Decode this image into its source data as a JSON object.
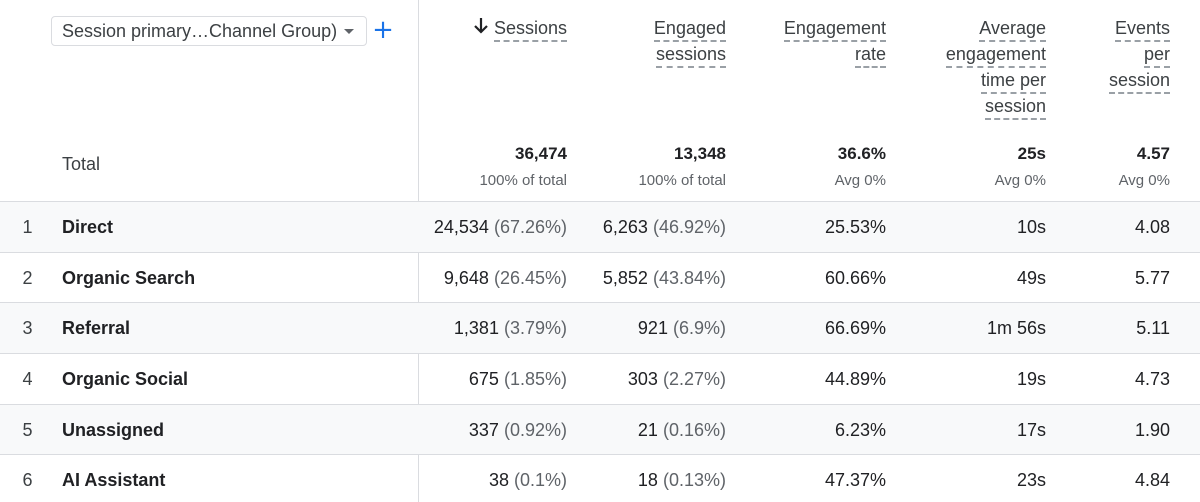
{
  "dimension": {
    "label": "Session primary…Channel Group)"
  },
  "icons": {
    "add": "plus-icon",
    "dropdown": "caret-down-icon",
    "sort": "arrow-down-icon",
    "add_color": "#1a73e8"
  },
  "columns": [
    {
      "id": "sessions",
      "lines": [
        "Sessions"
      ],
      "sorted": true
    },
    {
      "id": "engaged_sessions",
      "lines": [
        "Engaged",
        "sessions"
      ]
    },
    {
      "id": "engagement_rate",
      "lines": [
        "Engagement",
        "rate"
      ]
    },
    {
      "id": "avg_engagement_time",
      "lines": [
        "Average",
        "engagement",
        "time per",
        "session"
      ]
    },
    {
      "id": "events_per_session",
      "lines": [
        "Events",
        "per",
        "session"
      ]
    }
  ],
  "totals": {
    "label": "Total",
    "values": [
      "36,474",
      "13,348",
      "36.6%",
      "25s",
      "4.57"
    ],
    "subs": [
      "100% of total",
      "100% of total",
      "Avg 0%",
      "Avg 0%",
      "Avg 0%"
    ]
  },
  "rows": [
    {
      "index": "1",
      "name": "Direct",
      "sessions": "24,534",
      "sessions_pct": "(67.26%)",
      "engaged": "6,263",
      "engaged_pct": "(46.92%)",
      "rate": "25.53%",
      "time": "10s",
      "events": "4.08"
    },
    {
      "index": "2",
      "name": "Organic Search",
      "sessions": "9,648",
      "sessions_pct": "(26.45%)",
      "engaged": "5,852",
      "engaged_pct": "(43.84%)",
      "rate": "60.66%",
      "time": "49s",
      "events": "5.77"
    },
    {
      "index": "3",
      "name": "Referral",
      "sessions": "1,381",
      "sessions_pct": "(3.79%)",
      "engaged": "921",
      "engaged_pct": "(6.9%)",
      "rate": "66.69%",
      "time": "1m 56s",
      "events": "5.11"
    },
    {
      "index": "4",
      "name": "Organic Social",
      "sessions": "675",
      "sessions_pct": "(1.85%)",
      "engaged": "303",
      "engaged_pct": "(2.27%)",
      "rate": "44.89%",
      "time": "19s",
      "events": "4.73"
    },
    {
      "index": "5",
      "name": "Unassigned",
      "sessions": "337",
      "sessions_pct": "(0.92%)",
      "engaged": "21",
      "engaged_pct": "(0.16%)",
      "rate": "6.23%",
      "time": "17s",
      "events": "1.90"
    },
    {
      "index": "6",
      "name": "AI Assistant",
      "sessions": "38",
      "sessions_pct": "(0.1%)",
      "engaged": "18",
      "engaged_pct": "(0.13%)",
      "rate": "47.37%",
      "time": "23s",
      "events": "4.84"
    }
  ]
}
